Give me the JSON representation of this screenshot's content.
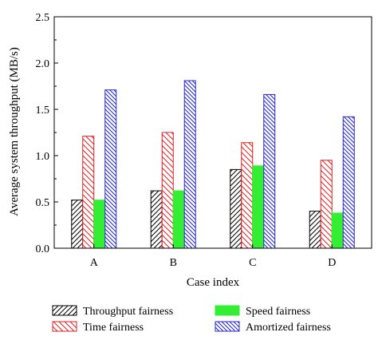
{
  "chart_data": {
    "type": "bar",
    "xlabel": "Case index",
    "ylabel": "Average system throughput (MB/s)",
    "categories": [
      "A",
      "B",
      "C",
      "D"
    ],
    "ylim": [
      0,
      2.5
    ],
    "yticks": [
      "0.0",
      "0.5",
      "1.0",
      "1.5",
      "2.0",
      "2.5"
    ],
    "grid": false,
    "legend_position": "bottom",
    "series": [
      {
        "name": "Throughput fairness",
        "values": [
          0.52,
          0.62,
          0.85,
          0.4
        ],
        "color": "#000000",
        "hatch": "diagonal-up"
      },
      {
        "name": "Time fairness",
        "values": [
          1.21,
          1.25,
          1.14,
          0.95
        ],
        "color": "#e02020",
        "hatch": "diagonal-down"
      },
      {
        "name": "Speed fairness",
        "values": [
          0.52,
          0.62,
          0.89,
          0.38
        ],
        "color": "#33ee33",
        "hatch": "solid"
      },
      {
        "name": "Amortized fairness",
        "values": [
          1.71,
          1.81,
          1.66,
          1.42
        ],
        "color": "#2b2bc8",
        "hatch": "diagonal-down-dense"
      }
    ]
  }
}
